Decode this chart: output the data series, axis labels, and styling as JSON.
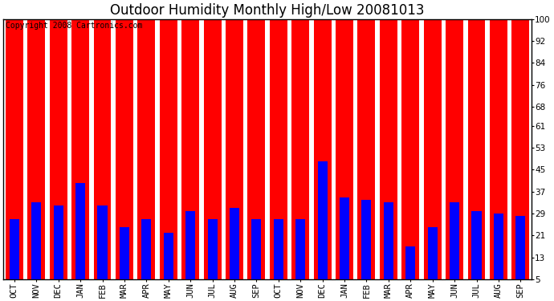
{
  "title": "Outdoor Humidity Monthly High/Low 20081013",
  "copyright_text": "Copyright 2008 Cartronics.com",
  "months": [
    "OCT",
    "NOV",
    "DEC",
    "JAN",
    "FEB",
    "MAR",
    "APR",
    "MAY",
    "JUN",
    "JUL",
    "AUG",
    "SEP",
    "OCT",
    "NOV",
    "DEC",
    "JAN",
    "FEB",
    "MAR",
    "APR",
    "MAY",
    "JUN",
    "JUL",
    "AUG",
    "SEP"
  ],
  "high_values": [
    100,
    100,
    100,
    100,
    100,
    100,
    100,
    100,
    100,
    100,
    100,
    100,
    100,
    100,
    100,
    100,
    100,
    100,
    100,
    100,
    100,
    100,
    100,
    100
  ],
  "low_values": [
    22,
    28,
    27,
    35,
    27,
    19,
    22,
    17,
    25,
    22,
    26,
    22,
    22,
    22,
    43,
    30,
    29,
    28,
    12,
    19,
    28,
    25,
    24,
    23
  ],
  "high_color": "#ff0000",
  "low_color": "#0000ff",
  "bg_color": "#ffffff",
  "plot_bg_color": "#ffffff",
  "yticks": [
    5,
    13,
    21,
    29,
    37,
    45,
    53,
    61,
    68,
    76,
    84,
    92,
    100
  ],
  "ymin": 5,
  "ymax": 100,
  "grid_color": "#aaaaaa",
  "bar_width": 0.8,
  "title_fontsize": 12,
  "tick_fontsize": 7.5,
  "copyright_fontsize": 7
}
